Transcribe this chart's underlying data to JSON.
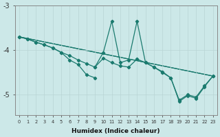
{
  "bg_color": "#cce8e8",
  "line_color": "#1a7a6e",
  "grid_color": "#b8d4d4",
  "xlabel": "Humidex (Indice chaleur)",
  "xlim": [
    -0.5,
    23.5
  ],
  "ylim": [
    -5.45,
    -3.35
  ],
  "yticks": [
    -5,
    -4,
    -3
  ],
  "xticks": [
    0,
    1,
    2,
    3,
    4,
    5,
    6,
    7,
    8,
    9,
    10,
    11,
    12,
    13,
    14,
    15,
    16,
    17,
    18,
    19,
    20,
    21,
    22,
    23
  ],
  "curve_main": {
    "x": [
      0,
      1,
      2,
      3,
      4,
      5,
      6,
      7,
      8,
      9,
      10,
      11,
      12,
      13,
      14,
      15,
      16,
      17,
      18,
      19,
      20,
      21,
      22,
      23
    ],
    "y": [
      -3.7,
      -3.75,
      -3.82,
      -3.88,
      -3.95,
      -4.05,
      -4.12,
      -4.22,
      -4.3,
      -4.38,
      -4.18,
      -4.28,
      -4.35,
      -4.38,
      -4.2,
      -4.28,
      -4.38,
      -4.48,
      -4.62,
      -5.12,
      -5.0,
      -5.05,
      -4.8,
      -4.58
    ]
  },
  "curve_spike1": {
    "x": [
      9,
      10,
      11,
      12,
      13,
      14,
      15,
      16,
      17,
      18,
      19,
      20,
      21,
      22,
      23
    ],
    "y": [
      -4.38,
      -4.05,
      -3.35,
      -4.28,
      -4.22,
      -3.35,
      -4.28,
      -4.38,
      -4.5,
      -4.62,
      -5.15,
      -5.02,
      -5.08,
      -4.82,
      -4.58
    ]
  },
  "curve_lower_left": {
    "x": [
      0,
      1,
      2,
      3,
      4,
      5,
      6,
      7,
      8,
      9
    ],
    "y": [
      -3.7,
      -3.75,
      -3.82,
      -3.88,
      -3.95,
      -4.05,
      -4.22,
      -4.32,
      -4.55,
      -4.62
    ]
  },
  "line_straight": {
    "x": [
      0,
      23
    ],
    "y": [
      -3.7,
      -4.58
    ]
  },
  "line_lower": {
    "x": [
      0,
      23
    ],
    "y": [
      -3.7,
      -4.58
    ]
  }
}
